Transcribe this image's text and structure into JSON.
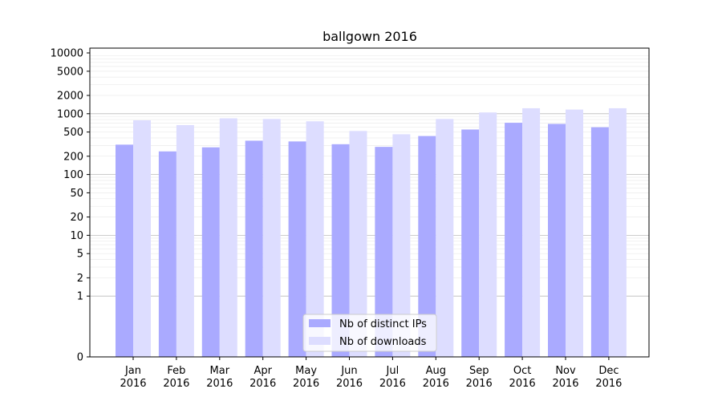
{
  "chart_data": {
    "type": "bar",
    "title": "ballgown 2016",
    "xlabel": "",
    "ylabel": "",
    "yscale": "symlog",
    "ylim": [
      0,
      12000
    ],
    "yticks": [
      0,
      1,
      2,
      5,
      10,
      20,
      50,
      100,
      200,
      500,
      1000,
      2000,
      5000,
      10000
    ],
    "categories": [
      [
        "Jan",
        "2016"
      ],
      [
        "Feb",
        "2016"
      ],
      [
        "Mar",
        "2016"
      ],
      [
        "Apr",
        "2016"
      ],
      [
        "May",
        "2016"
      ],
      [
        "Jun",
        "2016"
      ],
      [
        "Jul",
        "2016"
      ],
      [
        "Aug",
        "2016"
      ],
      [
        "Sep",
        "2016"
      ],
      [
        "Oct",
        "2016"
      ],
      [
        "Nov",
        "2016"
      ],
      [
        "Dec",
        "2016"
      ]
    ],
    "series": [
      {
        "name": "Nb of distinct IPs",
        "color": "#aaaaff",
        "values": [
          310,
          240,
          280,
          360,
          350,
          315,
          285,
          430,
          550,
          710,
          680,
          600
        ]
      },
      {
        "name": "Nb of downloads",
        "color": "#ddddff",
        "values": [
          780,
          650,
          840,
          820,
          750,
          520,
          460,
          820,
          1050,
          1230,
          1170,
          1230
        ]
      }
    ],
    "grid": true,
    "legend": "lower-center"
  }
}
